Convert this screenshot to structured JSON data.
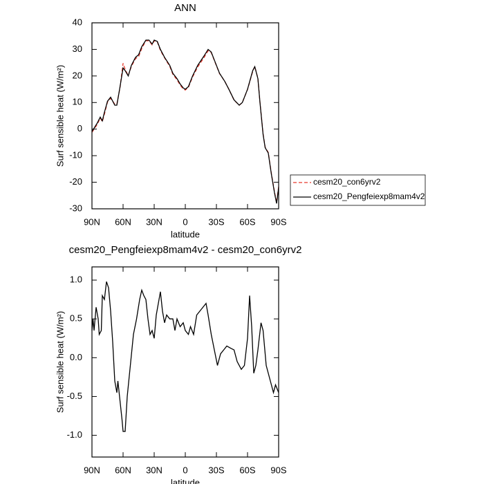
{
  "chart_data": [
    {
      "type": "line",
      "title": "ANN",
      "x_label": "latitude",
      "y_label": "Surf sensible heat (W/m²)",
      "xlim": [
        90,
        -90
      ],
      "ylim": [
        -30,
        40
      ],
      "xticks": [
        {
          "value": 90,
          "label": "90N"
        },
        {
          "value": 60,
          "label": "60N"
        },
        {
          "value": 30,
          "label": "30N"
        },
        0,
        {
          "value": -30,
          "label": "30S"
        },
        {
          "value": -60,
          "label": "60S"
        },
        {
          "value": -90,
          "label": "90S"
        }
      ],
      "yticks": [
        40,
        30,
        20,
        10,
        0,
        -10,
        -20,
        -30
      ],
      "legend": "outside-right",
      "x": [
        90,
        85,
        82,
        80,
        78,
        75,
        72,
        68,
        66,
        63,
        60,
        58,
        55,
        52,
        48,
        45,
        42,
        38,
        35,
        32,
        30,
        27,
        24,
        20,
        15,
        12,
        8,
        5,
        2,
        0,
        -3,
        -7,
        -12,
        -18,
        -22,
        -25,
        -28,
        -33,
        -38,
        -42,
        -47,
        -52,
        -55,
        -60,
        -65,
        -67,
        -70,
        -72,
        -75,
        -77,
        -80,
        -83,
        -86,
        -88,
        -90
      ],
      "series": [
        {
          "name": "cesm20_con6yrv2",
          "color": "#e8382c",
          "line_style": "dashed",
          "values": [
            -1.2,
            1.7,
            4.2,
            2.8,
            5.6,
            10.2,
            11.6,
            9.4,
            9.4,
            15.5,
            24.8,
            22.5,
            20.1,
            23.6,
            26.5,
            27.3,
            30.3,
            33.3,
            33.2,
            31.7,
            33.2,
            32.8,
            29.6,
            26.8,
            23.6,
            20.6,
            18.6,
            16.6,
            15.1,
            14.7,
            15.7,
            19.6,
            23.4,
            26.9,
            29.5,
            28.8,
            25.8,
            20.9,
            18.0,
            15.0,
            10.9,
            9.0,
            10.0,
            14.9,
            21.7,
            23.6,
            19.1,
            10.1,
            -1.8,
            -6.8,
            -8.8,
            -16.7,
            -23.6,
            -27.6,
            -21.6
          ]
        },
        {
          "name": "cesm20_Pengfeiexp8mam4v2",
          "color": "#000000",
          "line_style": "solid",
          "values": [
            -0.9,
            2.2,
            4.5,
            3.1,
            6.3,
            10.5,
            12.0,
            9.0,
            9.0,
            15.8,
            23.0,
            22.0,
            20.0,
            24.0,
            27.0,
            28.0,
            31.0,
            33.5,
            33.5,
            32.0,
            33.5,
            33.0,
            30.0,
            27.0,
            24.0,
            21.0,
            19.0,
            17.0,
            15.5,
            15.0,
            16.0,
            20.0,
            24.0,
            27.5,
            30.0,
            29.0,
            26.0,
            21.0,
            18.0,
            15.0,
            11.0,
            9.0,
            10.0,
            15.0,
            22.0,
            23.5,
            19.0,
            10.0,
            -2.0,
            -7.0,
            -9.0,
            -17.0,
            -24.0,
            -28.0,
            -22.0
          ]
        }
      ]
    },
    {
      "type": "line",
      "title": "cesm20_Pengfeiexp8mam4v2 - cesm20_con6yrv2",
      "x_label": "latitude",
      "y_label": "Surf sensible heat (W/m²)",
      "xlim": [
        90,
        -90
      ],
      "ylim": [
        -1.28,
        1.17
      ],
      "xticks": [
        {
          "value": 90,
          "label": "90N"
        },
        {
          "value": 60,
          "label": "60N"
        },
        {
          "value": 30,
          "label": "30N"
        },
        0,
        {
          "value": -30,
          "label": "30S"
        },
        {
          "value": -60,
          "label": "60S"
        },
        {
          "value": -90,
          "label": "90S"
        }
      ],
      "yticks": [
        {
          "value": 1,
          "label": "1.0"
        },
        0.5,
        {
          "value": 0,
          "label": "0.0"
        },
        -0.5,
        {
          "value": -1,
          "label": "-1.0"
        }
      ],
      "x": [
        90,
        89,
        88,
        86,
        84,
        83,
        81,
        80,
        78,
        76,
        74,
        72,
        70,
        68,
        66,
        65,
        63,
        61,
        60,
        58,
        56,
        53,
        50,
        47,
        44,
        42,
        40,
        38,
        36,
        34,
        32,
        30,
        28,
        26,
        24,
        22,
        20,
        18,
        15,
        12,
        10,
        8,
        5,
        2,
        0,
        -3,
        -5,
        -8,
        -11,
        -14,
        -17,
        -20,
        -22,
        -25,
        -28,
        -31,
        -34,
        -37,
        -40,
        -44,
        -47,
        -50,
        -54,
        -57,
        -60,
        -62,
        -64,
        -66,
        -68,
        -70,
        -73,
        -75,
        -78,
        -82,
        -85,
        -87,
        -90
      ],
      "series": [
        {
          "name": "cesm20_Pengfeiexp8mam4v2 - cesm20_con6yrv2",
          "color": "#000000",
          "line_style": "solid",
          "values": [
            0.35,
            0.5,
            0.35,
            0.65,
            0.5,
            0.3,
            0.35,
            0.8,
            0.75,
            0.98,
            0.9,
            0.6,
            0.2,
            -0.3,
            -0.45,
            -0.3,
            -0.55,
            -0.8,
            -0.95,
            -0.95,
            -0.5,
            -0.1,
            0.3,
            0.5,
            0.75,
            0.87,
            0.8,
            0.75,
            0.5,
            0.3,
            0.35,
            0.25,
            0.55,
            0.7,
            0.85,
            0.6,
            0.45,
            0.55,
            0.5,
            0.5,
            0.35,
            0.5,
            0.4,
            0.45,
            0.35,
            0.3,
            0.4,
            0.3,
            0.55,
            0.6,
            0.65,
            0.7,
            0.55,
            0.3,
            0.1,
            -0.1,
            0.05,
            0.1,
            0.15,
            0.12,
            0.1,
            -0.05,
            -0.15,
            -0.1,
            0.25,
            0.8,
            0.4,
            -0.2,
            -0.1,
            0.1,
            0.45,
            0.35,
            -0.1,
            -0.3,
            -0.45,
            -0.35,
            -0.45
          ]
        }
      ]
    }
  ]
}
